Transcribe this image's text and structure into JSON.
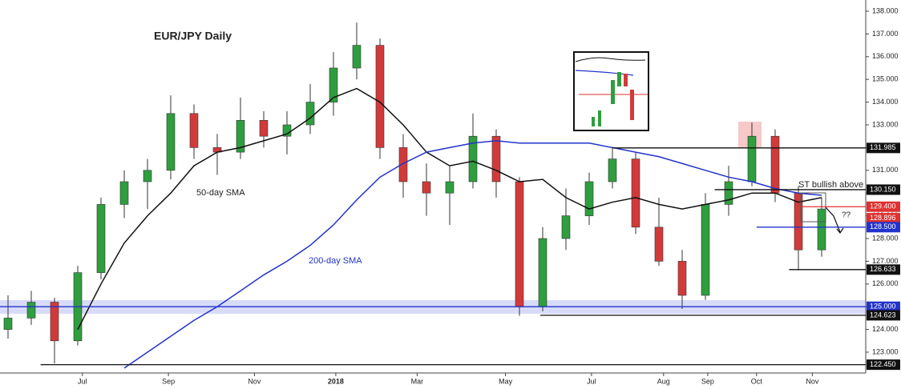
{
  "chart_data": {
    "type": "candlestick",
    "title": "EUR/JPY Daily",
    "categories": [
      null,
      null,
      null,
      null,
      null,
      null,
      null,
      null,
      null,
      null,
      null,
      null,
      null,
      null,
      null,
      null,
      null,
      null,
      null,
      null,
      null,
      null,
      null,
      null,
      null,
      null,
      null,
      null,
      null,
      null,
      null,
      null,
      null,
      null,
      null,
      null
    ],
    "open": [
      124.0,
      124.5,
      125.2,
      123.5,
      126.5,
      129.5,
      130.5,
      131.0,
      133.5,
      132.0,
      131.8,
      133.2,
      132.5,
      133.0,
      134.0,
      135.5,
      136.5,
      132.0,
      130.5,
      130.0,
      130.5,
      132.5,
      130.5,
      125.0,
      128.0,
      129.0,
      130.5,
      131.5,
      128.5,
      127.0,
      125.5,
      129.5,
      130.5,
      132.5,
      130.0,
      127.5
    ],
    "high": [
      125.5,
      125.7,
      125.4,
      126.8,
      129.8,
      131.0,
      131.5,
      134.3,
      133.9,
      132.6,
      134.2,
      133.6,
      133.6,
      134.8,
      136.2,
      137.5,
      136.8,
      132.6,
      131.3,
      131.2,
      133.5,
      132.8,
      130.7,
      128.5,
      130.2,
      130.9,
      132.0,
      131.8,
      129.8,
      127.5,
      130.0,
      131.2,
      133.1,
      132.8,
      130.3,
      129.8
    ],
    "low": [
      123.6,
      124.2,
      122.5,
      123.3,
      126.2,
      128.9,
      129.3,
      130.6,
      131.5,
      130.8,
      131.5,
      132.0,
      131.7,
      132.6,
      133.4,
      135.0,
      131.5,
      129.8,
      129.0,
      128.6,
      130.2,
      129.8,
      124.6,
      124.8,
      127.5,
      128.6,
      130.2,
      128.2,
      126.8,
      124.9,
      125.3,
      129.0,
      130.3,
      129.6,
      126.6,
      127.2
    ],
    "close": [
      124.5,
      125.2,
      123.5,
      126.5,
      129.5,
      130.5,
      131.0,
      133.5,
      132.0,
      131.8,
      133.2,
      132.5,
      133.0,
      134.0,
      135.5,
      136.5,
      132.0,
      130.5,
      130.0,
      130.5,
      132.5,
      130.5,
      125.0,
      128.0,
      129.0,
      130.5,
      131.5,
      128.5,
      127.0,
      125.5,
      129.5,
      130.5,
      132.5,
      130.0,
      127.5,
      129.3
    ],
    "up_color": "#2e9e3e",
    "down_color": "#d23a3a",
    "series": [
      {
        "name": "50-day SMA",
        "color": "#111111",
        "values": [
          null,
          null,
          null,
          124.0,
          126.0,
          127.8,
          129.0,
          130.0,
          131.2,
          131.8,
          132.0,
          132.3,
          132.6,
          133.3,
          134.2,
          134.6,
          134.0,
          133.0,
          131.8,
          131.2,
          131.4,
          131.0,
          130.5,
          130.6,
          129.8,
          129.3,
          129.6,
          129.8,
          129.5,
          129.3,
          129.5,
          129.7,
          130.0,
          130.0,
          129.6,
          129.8
        ]
      },
      {
        "name": "200-day SMA",
        "color": "#2233cc",
        "values": [
          null,
          null,
          null,
          null,
          null,
          122.3,
          123.0,
          123.7,
          124.4,
          125.0,
          125.7,
          126.4,
          127.0,
          127.7,
          128.6,
          129.7,
          130.7,
          131.3,
          131.8,
          132.0,
          132.2,
          132.3,
          132.2,
          132.2,
          132.2,
          132.2,
          132.0,
          131.8,
          131.6,
          131.3,
          131.0,
          130.7,
          130.5,
          130.2,
          130.0,
          129.9
        ]
      }
    ],
    "ylim": [
      122.0,
      138.5
    ],
    "yticks": [
      {
        "value": 123,
        "label": "123.000"
      },
      {
        "value": 124,
        "label": "124.000"
      },
      {
        "value": 125,
        "label": "125.000"
      },
      {
        "value": 126,
        "label": "126.000"
      },
      {
        "value": 127,
        "label": "127.000"
      },
      {
        "value": 128,
        "label": "128.000"
      },
      {
        "value": 129,
        "label": "129.000"
      },
      {
        "value": 130,
        "label": "130.000"
      },
      {
        "value": 131,
        "label": "131.000"
      },
      {
        "value": 132,
        "label": "132.000"
      },
      {
        "value": 133,
        "label": "133.000"
      },
      {
        "value": 134,
        "label": "134.000"
      },
      {
        "value": 135,
        "label": "135.000"
      },
      {
        "value": 136,
        "label": "136.000"
      },
      {
        "value": 137,
        "label": "137.000"
      },
      {
        "value": 138,
        "label": "138.000"
      }
    ],
    "xticks": [
      {
        "value": 3.2,
        "label": "Jul"
      },
      {
        "value": 6.9,
        "label": "Sep"
      },
      {
        "value": 10.6,
        "label": "Nov"
      },
      {
        "value": 14.1,
        "label": "2018"
      },
      {
        "value": 17.6,
        "label": "Mar"
      },
      {
        "value": 21.4,
        "label": "May"
      },
      {
        "value": 25.1,
        "label": "Jul"
      },
      {
        "value": 28.2,
        "label": "Aug"
      },
      {
        "value": 30.1,
        "label": "Sep"
      },
      {
        "value": 32.2,
        "label": "Oct"
      },
      {
        "value": 34.6,
        "label": "Nov"
      }
    ],
    "levels": [
      {
        "value": 131.985,
        "label": "131.985",
        "color": "#111111",
        "from": 26
      },
      {
        "value": 130.15,
        "label": "130.150",
        "color": "#111111",
        "from": 30.4
      },
      {
        "value": 129.4,
        "label": "129.400",
        "color": "#e03030",
        "from": 34.1
      },
      {
        "value": 128.896,
        "label": "128.896",
        "color": "#e03030",
        "from": null
      },
      {
        "value": 128.5,
        "label": "128.500",
        "color": "#2233cc",
        "from": 32.2
      },
      {
        "value": 126.633,
        "label": "126.633",
        "color": "#111111",
        "from": 33.6
      },
      {
        "value": 125.0,
        "label": "125.000",
        "color": "#2233cc",
        "from": -0.4
      },
      {
        "value": 124.623,
        "label": "124.623",
        "color": "#111111",
        "from": 22.9
      },
      {
        "value": 122.45,
        "label": "122.450",
        "color": "#111111",
        "from": 1.4
      }
    ],
    "annotations": [
      "50-day SMA",
      "200-day SMA",
      "ST bullish above",
      "??"
    ]
  }
}
